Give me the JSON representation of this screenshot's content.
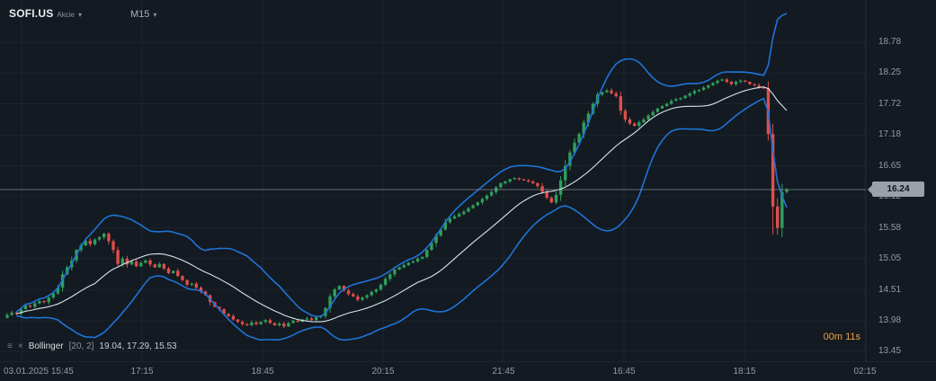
{
  "header": {
    "symbol": "SOFI.US",
    "instrument_type": "Akcie",
    "timeframe": "M15"
  },
  "indicator": {
    "name": "Bollinger",
    "params": "[20, 2]",
    "values_text": "19.04,  17.29,  15.53"
  },
  "countdown": "00m 11s",
  "chart_data": {
    "type": "candlestick",
    "title": "SOFI.US M15 candlestick chart with Bollinger Bands (20, 2)",
    "symbol": "SOFI.US",
    "timeframe": "M15",
    "y_axis_labels": [
      18.78,
      18.25,
      17.72,
      17.18,
      16.65,
      16.12,
      15.58,
      15.05,
      14.51,
      13.98,
      13.45
    ],
    "x_axis_labels": [
      "03.01.2025 15:45",
      "17:15",
      "18:45",
      "20:15",
      "21:45",
      "16:45",
      "18:15",
      "02:15"
    ],
    "current_price": 16.24,
    "visible_price_range": [
      13.28,
      19.51
    ],
    "bollinger": {
      "period": 20,
      "stddev": 2,
      "last_upper": 19.04,
      "last_middle": 17.29,
      "last_lower": 15.53
    },
    "closes": [
      14.08,
      14.12,
      14.1,
      14.18,
      14.24,
      14.22,
      14.28,
      14.32,
      14.3,
      14.38,
      14.45,
      14.55,
      14.78,
      14.9,
      15.02,
      15.2,
      15.28,
      15.36,
      15.3,
      15.38,
      15.42,
      15.48,
      15.35,
      15.2,
      14.96,
      15.05,
      14.95,
      15.0,
      14.92,
      14.98,
      15.02,
      14.95,
      14.9,
      14.96,
      14.88,
      14.8,
      14.84,
      14.75,
      14.68,
      14.6,
      14.62,
      14.55,
      14.48,
      14.42,
      14.3,
      14.22,
      14.18,
      14.1,
      14.06,
      14.0,
      13.96,
      13.92,
      13.9,
      13.95,
      13.92,
      13.96,
      13.99,
      13.94,
      13.9,
      13.93,
      13.88,
      13.94,
      13.98,
      13.96,
      14.0,
      14.02,
      13.99,
      14.04,
      14.06,
      14.2,
      14.4,
      14.52,
      14.58,
      14.5,
      14.44,
      14.4,
      14.34,
      14.38,
      14.42,
      14.48,
      14.52,
      14.6,
      14.7,
      14.78,
      14.86,
      14.9,
      14.94,
      14.98,
      15.0,
      15.05,
      15.08,
      15.2,
      15.32,
      15.45,
      15.55,
      15.68,
      15.74,
      15.78,
      15.82,
      15.86,
      15.92,
      15.97,
      16.02,
      16.08,
      16.14,
      16.2,
      16.28,
      16.35,
      16.38,
      16.42,
      16.44,
      16.42,
      16.4,
      16.38,
      16.35,
      16.3,
      16.2,
      16.1,
      16.02,
      16.15,
      16.4,
      16.65,
      16.88,
      17.05,
      17.2,
      17.4,
      17.55,
      17.72,
      17.88,
      17.92,
      17.95,
      17.9,
      17.85,
      17.6,
      17.45,
      17.38,
      17.34,
      17.4,
      17.45,
      17.52,
      17.58,
      17.64,
      17.68,
      17.72,
      17.77,
      17.8,
      17.82,
      17.86,
      17.9,
      17.94,
      17.96,
      18.0,
      18.04,
      18.08,
      18.12,
      18.14,
      18.1,
      18.06,
      18.1,
      18.12,
      18.1,
      18.06,
      18.04,
      18.0,
      17.99,
      17.2,
      15.95,
      15.58,
      16.2,
      16.24
    ],
    "colors": {
      "up": "#2f9e5b",
      "down": "#df4e4a",
      "band": "#1e74d8",
      "middle": "#d9e4ea",
      "current_price_line": "#9aa4ae",
      "badge_bg": "#9aa1aa",
      "countdown": "#f0a23c",
      "background": "#131a21"
    }
  }
}
